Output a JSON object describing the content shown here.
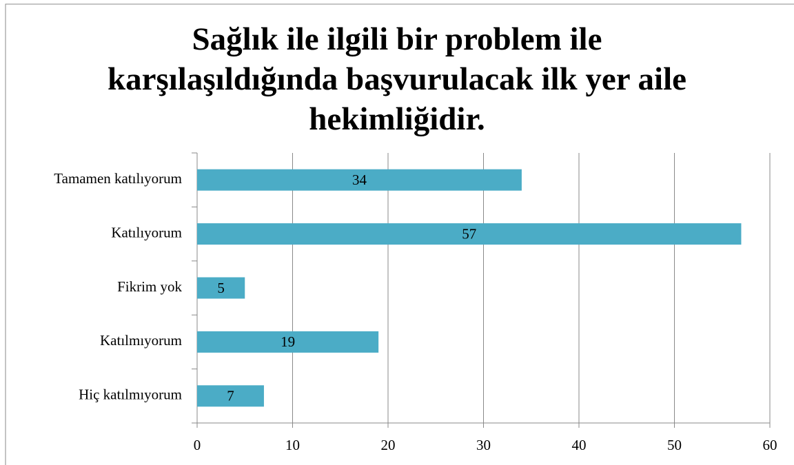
{
  "chart_data": {
    "type": "bar",
    "orientation": "horizontal",
    "title": "Sağlık ile ilgili bir problem ile karşılaşıldığında başvurulacak ilk yer aile hekimliğidir.",
    "categories": [
      "Tamamen katılıyorum",
      "Katılıyorum",
      "Fikrim yok",
      "Katılmıyorum",
      "Hiç katılmıyorum"
    ],
    "values": [
      34,
      57,
      5,
      19,
      7
    ],
    "color": "#4bacc6",
    "xlim": [
      0,
      60
    ],
    "xticks": [
      0,
      10,
      20,
      30,
      40,
      50,
      60
    ],
    "grid": true
  }
}
